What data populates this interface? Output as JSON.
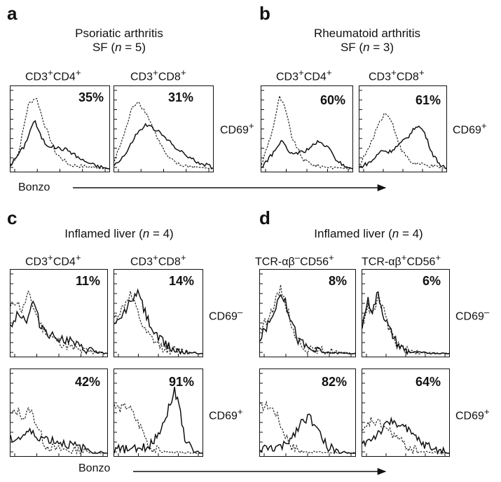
{
  "figure": {
    "panels": [
      {
        "letter": "a",
        "title_line1": "Psoriatic arthritis",
        "title_line2_pre": "SF (",
        "title_n": "n",
        "title_line2_post": " = 5)"
      },
      {
        "letter": "b",
        "title_line1": "Rheumatoid arthritis",
        "title_line2_pre": "SF (",
        "title_n": "n",
        "title_line2_post": " = 3)"
      },
      {
        "letter": "c",
        "title_line1": "Inflamed liver (",
        "title_n": "n",
        "title_line2_post": " = 4)"
      },
      {
        "letter": "d",
        "title_line1": "Inflamed liver (",
        "title_n": "n",
        "title_line2_post": " = 4)"
      }
    ],
    "column_labels": {
      "cd4": {
        "base1": "CD3",
        "sup1": "+",
        "base2": "CD4",
        "sup2": "+"
      },
      "cd8": {
        "base1": "CD3",
        "sup1": "+",
        "base2": "CD8",
        "sup2": "+"
      },
      "tcr_neg": {
        "base1": "TCR-αβ",
        "sup1": "–",
        "base2": "CD56",
        "sup2": "+"
      },
      "tcr_pos": {
        "base1": "TCR-αβ",
        "sup1": "+",
        "base2": "CD56",
        "sup2": "+"
      }
    },
    "row_labels": {
      "cd69_pos": {
        "base": "CD69",
        "sup": "+"
      },
      "cd69_neg": {
        "base": "CD69",
        "sup": "–"
      }
    },
    "x_axis_label": "Bonzo"
  },
  "chart_data": [
    {
      "type": "histogram",
      "panel": "a",
      "population": "CD3+CD4+",
      "cd69": "CD69+",
      "percent_label": "35%",
      "series": [
        {
          "style": "dotted"
        },
        {
          "style": "solid"
        }
      ],
      "x_axis": "Bonzo"
    },
    {
      "type": "histogram",
      "panel": "a",
      "population": "CD3+CD8+",
      "cd69": "CD69+",
      "percent_label": "31%",
      "series": [
        {
          "style": "dotted"
        },
        {
          "style": "solid"
        }
      ],
      "x_axis": "Bonzo"
    },
    {
      "type": "histogram",
      "panel": "b",
      "population": "CD3+CD4+",
      "cd69": "CD69+",
      "percent_label": "60%",
      "series": [
        {
          "style": "dotted"
        },
        {
          "style": "solid"
        }
      ],
      "x_axis": "Bonzo"
    },
    {
      "type": "histogram",
      "panel": "b",
      "population": "CD3+CD8+",
      "cd69": "CD69+",
      "percent_label": "61%",
      "series": [
        {
          "style": "dotted"
        },
        {
          "style": "solid"
        }
      ],
      "x_axis": "Bonzo"
    },
    {
      "type": "histogram",
      "panel": "c",
      "population": "CD3+CD4+",
      "cd69": "CD69–",
      "percent_label": "11%",
      "series": [
        {
          "style": "dotted"
        },
        {
          "style": "solid"
        }
      ],
      "x_axis": "Bonzo"
    },
    {
      "type": "histogram",
      "panel": "c",
      "population": "CD3+CD8+",
      "cd69": "CD69–",
      "percent_label": "14%",
      "series": [
        {
          "style": "dotted"
        },
        {
          "style": "solid"
        }
      ],
      "x_axis": "Bonzo"
    },
    {
      "type": "histogram",
      "panel": "c",
      "population": "CD3+CD4+",
      "cd69": "CD69+",
      "percent_label": "42%",
      "series": [
        {
          "style": "dotted"
        },
        {
          "style": "solid"
        }
      ],
      "x_axis": "Bonzo"
    },
    {
      "type": "histogram",
      "panel": "c",
      "population": "CD3+CD8+",
      "cd69": "CD69+",
      "percent_label": "91%",
      "series": [
        {
          "style": "dotted"
        },
        {
          "style": "solid"
        }
      ],
      "x_axis": "Bonzo"
    },
    {
      "type": "histogram",
      "panel": "d",
      "population": "TCR-αβ–CD56+",
      "cd69": "CD69–",
      "percent_label": "8%",
      "series": [
        {
          "style": "dotted"
        },
        {
          "style": "solid"
        }
      ],
      "x_axis": "Bonzo"
    },
    {
      "type": "histogram",
      "panel": "d",
      "population": "TCR-αβ+CD56+",
      "cd69": "CD69–",
      "percent_label": "6%",
      "series": [
        {
          "style": "dotted"
        },
        {
          "style": "solid"
        }
      ],
      "x_axis": "Bonzo"
    },
    {
      "type": "histogram",
      "panel": "d",
      "population": "TCR-αβ–CD56+",
      "cd69": "CD69+",
      "percent_label": "82%",
      "series": [
        {
          "style": "dotted"
        },
        {
          "style": "solid"
        }
      ],
      "x_axis": "Bonzo"
    },
    {
      "type": "histogram",
      "panel": "d",
      "population": "TCR-αβ+CD56+",
      "cd69": "CD69+",
      "percent_label": "64%",
      "series": [
        {
          "style": "dotted"
        },
        {
          "style": "solid"
        }
      ],
      "x_axis": "Bonzo"
    }
  ]
}
